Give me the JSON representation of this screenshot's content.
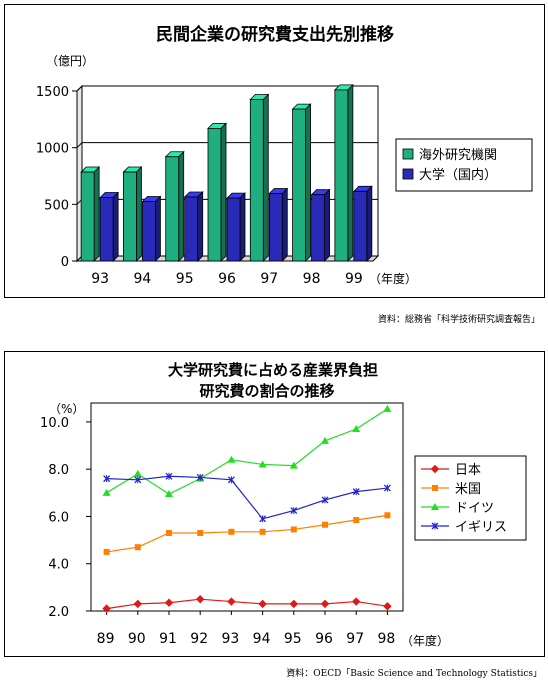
{
  "sources": {
    "top": "資料：総務省「科学技術研究調査報告」",
    "bottom": "資料：OECD「Basic Science and Technology Statistics」"
  },
  "chart_data": [
    {
      "type": "bar",
      "title": "民間企業の研究費支出先別推移",
      "ylabel": "（億円）",
      "xlabel": "（年度）",
      "categories": [
        "93",
        "94",
        "95",
        "96",
        "97",
        "98",
        "99"
      ],
      "ylim": [
        0,
        1500
      ],
      "yticks": [
        0,
        500,
        1000,
        1500
      ],
      "ytick_labels": [
        "0",
        "500",
        "1000",
        "1500"
      ],
      "series": [
        {
          "name": "海外研究機関",
          "color": "#1fae80",
          "values": [
            785,
            785,
            920,
            1170,
            1425,
            1340,
            1510
          ]
        },
        {
          "name": "大学（国内）",
          "color": "#2a2ab8",
          "values": [
            560,
            525,
            565,
            555,
            595,
            585,
            615
          ]
        }
      ],
      "legend": "right",
      "grid": "horizontal"
    },
    {
      "type": "line",
      "title": [
        "大学研究費に占める産業界負担",
        "研究費の割合の推移"
      ],
      "ylabel": "（%）",
      "xlabel": "（年度）",
      "categories": [
        "89",
        "90",
        "91",
        "92",
        "93",
        "94",
        "95",
        "96",
        "97",
        "98"
      ],
      "ylim": [
        2.0,
        10.8
      ],
      "yticks": [
        2.0,
        4.0,
        6.0,
        8.0,
        10.0
      ],
      "ytick_labels": [
        "2.0",
        "4.0",
        "6.0",
        "8.0",
        "10.0"
      ],
      "series": [
        {
          "name": "日本",
          "color": "#e01818",
          "marker": "diamond",
          "values": [
            2.1,
            2.3,
            2.35,
            2.5,
            2.4,
            2.3,
            2.3,
            2.3,
            2.4,
            2.2
          ]
        },
        {
          "name": "米国",
          "color": "#ff8000",
          "marker": "square",
          "values": [
            4.5,
            4.7,
            5.3,
            5.3,
            5.35,
            5.35,
            5.45,
            5.65,
            5.85,
            6.05
          ]
        },
        {
          "name": "ドイツ",
          "color": "#22dd22",
          "marker": "triangle",
          "values": [
            7.0,
            7.8,
            6.95,
            7.6,
            8.4,
            8.2,
            8.15,
            9.2,
            9.7,
            10.55
          ]
        },
        {
          "name": "イギリス",
          "color": "#2222cc",
          "marker": "x",
          "values": [
            7.6,
            7.55,
            7.7,
            7.65,
            7.55,
            5.9,
            6.25,
            6.7,
            7.05,
            7.2
          ]
        }
      ],
      "legend": "right",
      "grid": "none"
    }
  ]
}
